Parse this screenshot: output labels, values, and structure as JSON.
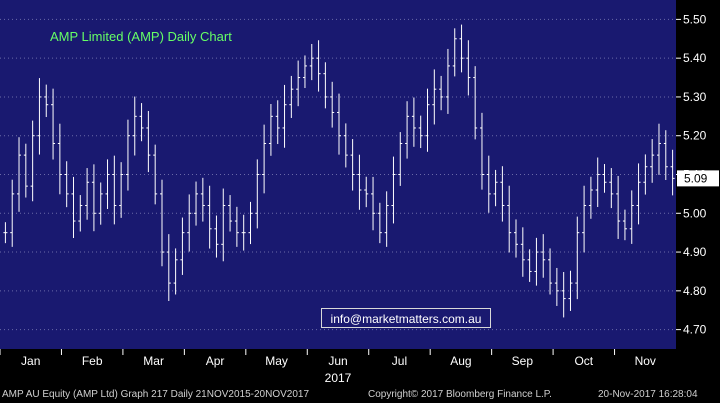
{
  "chart_data": {
    "type": "ohlc",
    "title": "AMP Limited (AMP) Daily Chart",
    "last_price_label": "5.09",
    "ylim": [
      4.65,
      5.55
    ],
    "yticks": [
      "4.70",
      "4.80",
      "4.90",
      "5.00",
      "5.10",
      "5.20",
      "5.30",
      "5.40",
      "5.50"
    ],
    "month_labels": [
      "Jan",
      "Feb",
      "Mar",
      "Apr",
      "May",
      "Jun",
      "Jul",
      "Aug",
      "Sep",
      "Oct",
      "Nov"
    ],
    "year_label": "2017",
    "series": [
      {
        "high": 5.37,
        "low": 4.9,
        "points": [
          4.95,
          5.05,
          5.15,
          5.07,
          5.2,
          5.3,
          5.28,
          5.18,
          5.1,
          5.05,
          4.98,
          5.02,
          5.08,
          5.0,
          5.05,
          5.1,
          5.02
        ]
      },
      {
        "high": 5.27,
        "low": 4.75,
        "points": [
          5.1,
          5.2,
          5.25,
          5.22,
          5.15,
          5.05,
          4.9,
          4.82,
          4.88,
          4.95,
          5.0,
          5.05,
          5.02,
          4.96,
          4.92,
          5.02,
          4.98,
          4.95
        ]
      },
      {
        "high": 5.46,
        "low": 4.9,
        "points": [
          4.95,
          5.0,
          5.1,
          5.18,
          5.25,
          5.22,
          5.28,
          5.32,
          5.35,
          5.38,
          5.4,
          5.36,
          5.3,
          5.26,
          5.2,
          5.15,
          5.1,
          5.06
        ]
      },
      {
        "high": 5.48,
        "low": 4.9,
        "points": [
          5.05,
          5.0,
          4.95,
          5.02,
          5.1,
          5.18,
          5.25,
          5.22,
          5.2,
          5.28,
          5.32,
          5.3,
          5.38,
          5.45,
          5.4,
          5.35,
          5.22,
          5.1
        ]
      },
      {
        "high": 5.12,
        "low": 4.75,
        "points": [
          5.05,
          5.08,
          5.02,
          4.95,
          4.92,
          4.88,
          4.85,
          4.9,
          4.88,
          4.82,
          4.8,
          4.78,
          4.82
        ]
      },
      {
        "high": 5.2,
        "low": 4.9,
        "points": [
          4.95,
          5.02,
          5.06,
          5.1,
          5.08,
          5.05,
          4.98,
          4.96,
          5.02,
          5.08,
          5.12,
          5.15,
          5.18,
          5.12,
          5.09
        ]
      }
    ]
  },
  "overlay": {
    "contact": "info@marketmatters.com.au"
  },
  "footer": {
    "left": "AMP AU Equity (AMP Ltd) Graph 217  Daily 21NOV2015-20NOV2017",
    "center": "Copyright© 2017 Bloomberg Finance L.P.",
    "right": "20-Nov-2017 16:28:04"
  },
  "colors": {
    "plot_bg": "#191970",
    "bar": "#ffffff",
    "title": "#66ff66",
    "last_box_bg": "#ffffff",
    "last_box_text": "#000000"
  }
}
